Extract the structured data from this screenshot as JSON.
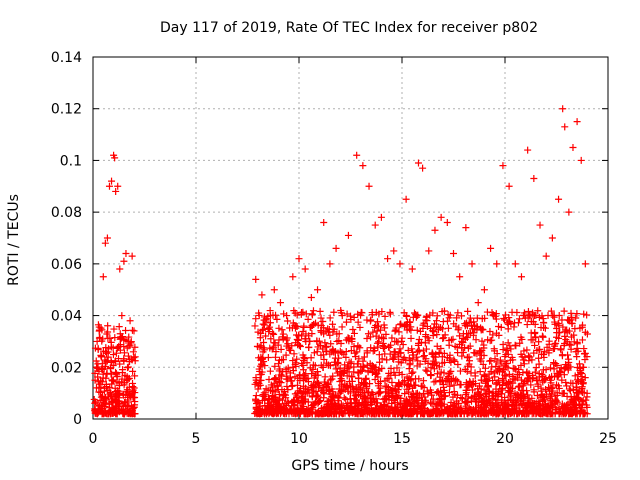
{
  "chart_data": {
    "type": "scatter",
    "title": "Day 117 of 2019, Rate Of TEC Index for receiver p802",
    "xlabel": "GPS time / hours",
    "ylabel": "ROTI / TECUs",
    "xlim": [
      0,
      25
    ],
    "ylim": [
      0,
      0.14
    ],
    "xticks": [
      "0",
      "5",
      "10",
      "15",
      "20",
      "25"
    ],
    "yticks": [
      "0",
      "0.02",
      "0.04",
      "0.06",
      "0.08",
      "0.1",
      "0.12",
      "0.14"
    ],
    "grid": true,
    "marker": "plus",
    "color": "#ff0000",
    "series": [
      {
        "x": [
          0.1,
          0.2,
          0.3,
          0.4,
          0.5,
          0.6,
          0.7,
          0.8,
          0.9,
          1.0,
          1.05,
          1.1,
          1.2,
          1.3,
          1.4,
          1.5,
          1.6,
          1.7,
          1.8,
          1.9,
          2.0,
          7.9,
          8.0,
          8.2,
          8.5,
          8.8,
          9.1,
          9.4,
          9.7,
          10.0,
          10.3,
          10.6,
          10.9,
          11.2,
          11.5,
          11.8,
          12.1,
          12.4,
          12.8,
          13.1,
          13.4,
          13.7,
          14.0,
          14.3,
          14.6,
          14.9,
          15.2,
          15.5,
          15.8,
          16.0,
          16.3,
          16.6,
          16.9,
          17.2,
          17.5,
          17.8,
          18.1,
          18.4,
          18.7,
          19.0,
          19.3,
          19.6,
          19.9,
          20.2,
          20.5,
          20.8,
          21.1,
          21.4,
          21.7,
          22.0,
          22.3,
          22.6,
          22.8,
          22.9,
          23.1,
          23.3,
          23.5,
          23.7,
          23.9
        ],
        "y": [
          0.015,
          0.03,
          0.034,
          0.024,
          0.055,
          0.068,
          0.07,
          0.09,
          0.092,
          0.102,
          0.101,
          0.088,
          0.09,
          0.058,
          0.04,
          0.061,
          0.064,
          0.03,
          0.038,
          0.063,
          0.012,
          0.054,
          0.028,
          0.048,
          0.035,
          0.05,
          0.045,
          0.04,
          0.055,
          0.062,
          0.058,
          0.047,
          0.05,
          0.076,
          0.06,
          0.066,
          0.04,
          0.071,
          0.102,
          0.098,
          0.09,
          0.075,
          0.078,
          0.062,
          0.065,
          0.06,
          0.085,
          0.058,
          0.099,
          0.097,
          0.065,
          0.073,
          0.078,
          0.076,
          0.064,
          0.055,
          0.074,
          0.06,
          0.045,
          0.05,
          0.066,
          0.06,
          0.098,
          0.09,
          0.06,
          0.055,
          0.104,
          0.093,
          0.075,
          0.063,
          0.07,
          0.085,
          0.12,
          0.113,
          0.08,
          0.105,
          0.115,
          0.1,
          0.06
        ]
      }
    ]
  }
}
